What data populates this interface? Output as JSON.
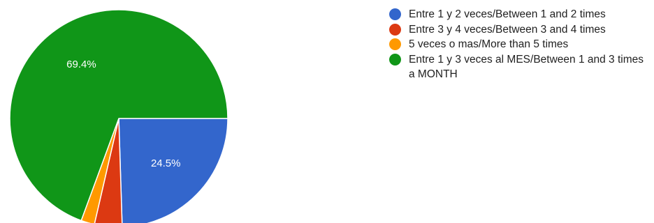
{
  "chart_data": {
    "type": "pie",
    "title": "",
    "slices": [
      {
        "label": "Entre 1 y 2 veces/Between 1 and 2 times",
        "value": 24.5,
        "data_label": "24.5%",
        "color": "#3366cc"
      },
      {
        "label": "Entre 3 y 4 veces/Between 3 and 4 times",
        "value": 4.1,
        "data_label": "",
        "color": "#dc3912"
      },
      {
        "label": "5 veces o mas/More than 5 times",
        "value": 2.0,
        "data_label": "",
        "color": "#ff9900"
      },
      {
        "label": "Entre 1 y 3 veces al MES/Between 1 and 3 times a MONTH",
        "value": 69.4,
        "data_label": "69.4%",
        "color": "#109618"
      }
    ],
    "start_angle_deg": 90,
    "direction": "clockwise",
    "legend_position": "right"
  }
}
